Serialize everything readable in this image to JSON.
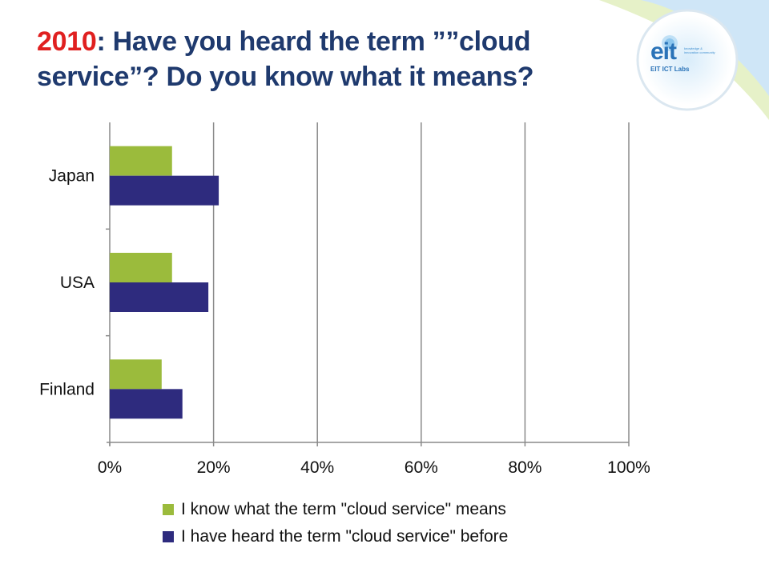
{
  "slide": {
    "title_year": "2010",
    "title_rest": ": Have you heard the term ””cloud service”? Do you know what it means?",
    "logo": {
      "main": "eit",
      "tagline": "knowledge & innovation community",
      "sub": "EIT ICT Labs"
    }
  },
  "colors": {
    "green": "#9bbb3c",
    "navy": "#2e2b7e",
    "title": "#1f3a6e",
    "year": "#e02020",
    "grid": "#8a8a8a"
  },
  "chart_data": {
    "type": "bar",
    "orientation": "horizontal",
    "categories": [
      "Japan",
      "USA",
      "Finland"
    ],
    "series": [
      {
        "name": "I know what the term \"cloud service\" means",
        "color": "#9bbb3c",
        "values": [
          12,
          12,
          10
        ]
      },
      {
        "name": "I have heard the term \"cloud service\" before",
        "color": "#2e2b7e",
        "values": [
          21,
          19,
          14
        ]
      }
    ],
    "xlim": [
      0,
      100
    ],
    "xticks": [
      "0%",
      "20%",
      "40%",
      "60%",
      "80%",
      "100%"
    ],
    "xtick_values": [
      0,
      20,
      40,
      60,
      80,
      100
    ],
    "grid": true,
    "legend_position": "bottom"
  }
}
